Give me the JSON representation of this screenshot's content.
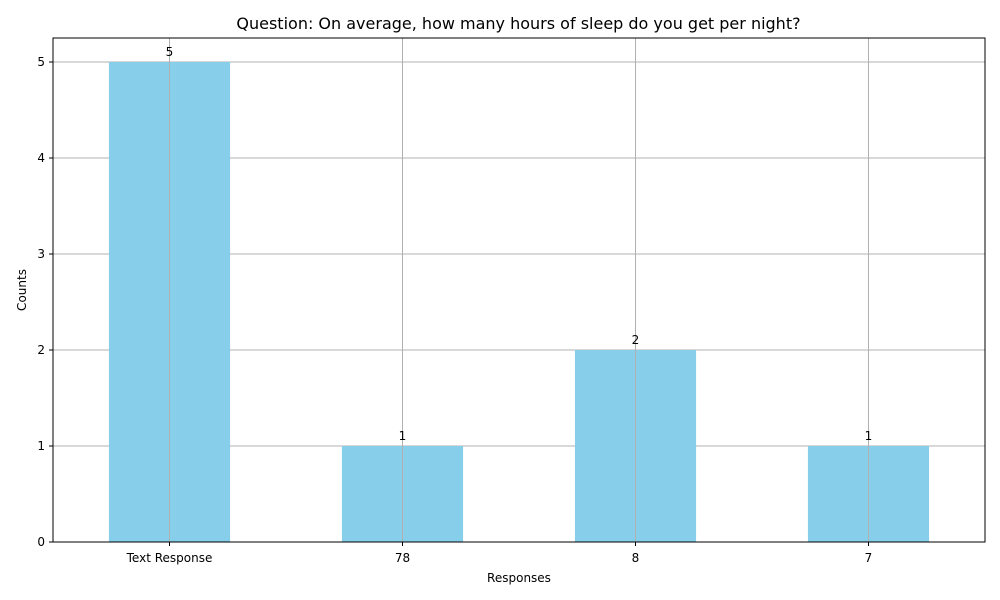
{
  "chart_data": {
    "type": "bar",
    "title": "Question: On average, how many hours of sleep do you get per night?",
    "xlabel": "Responses",
    "ylabel": "Counts",
    "categories": [
      "Text Response",
      "78",
      "8",
      "7"
    ],
    "values": [
      5,
      1,
      2,
      1
    ],
    "data_labels": [
      "5",
      "1",
      "2",
      "1"
    ],
    "ylim": [
      0,
      5.25
    ],
    "yticks": [
      0,
      1,
      2,
      3,
      4,
      5
    ],
    "grid": true,
    "bar_color": "#87CEEB",
    "grid_color": "#b0b0b0"
  }
}
